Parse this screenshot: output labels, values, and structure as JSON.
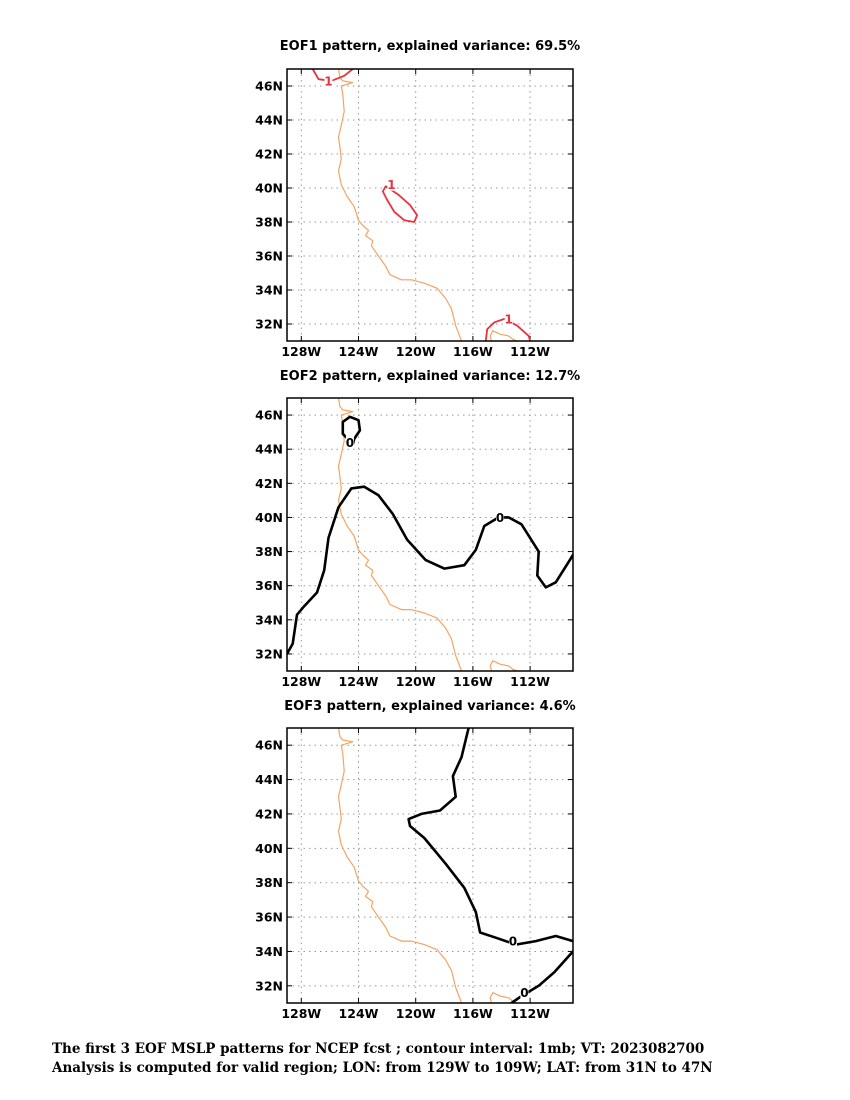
{
  "colors": {
    "coastline": "#f4a460",
    "positive_contour": "#e8333f",
    "zero_contour": "#000000",
    "grid": "#999999"
  },
  "chart_data": [
    {
      "type": "contour",
      "title": "EOF1 pattern, explained variance: 69.5%",
      "explained_variance_pct": 69.5,
      "x_ticks": [
        "128W",
        "124W",
        "120W",
        "116W",
        "112W"
      ],
      "y_ticks": [
        "46N",
        "44N",
        "42N",
        "40N",
        "38N",
        "36N",
        "34N",
        "32N"
      ],
      "xlim": [
        -129,
        -109
      ],
      "ylim": [
        31,
        47
      ],
      "grid": true,
      "contour_labels": [
        {
          "text": "1",
          "color": "positive_contour"
        },
        {
          "text": "1",
          "color": "positive_contour"
        },
        {
          "text": "1",
          "color": "positive_contour"
        }
      ],
      "contours": [
        {
          "level": 1,
          "color": "positive_contour",
          "points": [
            [
              -127.2,
              47.0
            ],
            [
              -126.8,
              46.4
            ],
            [
              -125.9,
              46.3
            ],
            [
              -125.0,
              46.6
            ],
            [
              -124.4,
              47.0
            ]
          ]
        },
        {
          "level": 1,
          "color": "positive_contour",
          "points": [
            [
              -122.1,
              40.1
            ],
            [
              -121.2,
              39.6
            ],
            [
              -120.4,
              39.0
            ],
            [
              -119.9,
              38.4
            ],
            [
              -120.1,
              38.0
            ],
            [
              -120.8,
              38.1
            ],
            [
              -121.5,
              38.6
            ],
            [
              -122.0,
              39.3
            ],
            [
              -122.3,
              39.8
            ],
            [
              -122.1,
              40.1
            ]
          ]
        },
        {
          "level": 1,
          "color": "positive_contour",
          "points": [
            [
              -115.1,
              31.0
            ],
            [
              -115.0,
              31.7
            ],
            [
              -114.5,
              32.1
            ],
            [
              -113.8,
              32.3
            ],
            [
              -112.9,
              31.9
            ],
            [
              -112.1,
              31.3
            ],
            [
              -112.0,
              31.0
            ]
          ]
        }
      ]
    },
    {
      "type": "contour",
      "title": "EOF2 pattern, explained variance: 12.7%",
      "explained_variance_pct": 12.7,
      "x_ticks": [
        "128W",
        "124W",
        "120W",
        "116W",
        "112W"
      ],
      "y_ticks": [
        "46N",
        "44N",
        "42N",
        "40N",
        "38N",
        "36N",
        "34N",
        "32N"
      ],
      "xlim": [
        -129,
        -109
      ],
      "ylim": [
        31,
        47
      ],
      "grid": true,
      "contour_labels": [
        {
          "text": "0",
          "color": "zero_contour"
        },
        {
          "text": "0",
          "color": "zero_contour"
        }
      ],
      "contours": [
        {
          "level": 0,
          "color": "zero_contour",
          "points": [
            [
              -124.4,
              44.3
            ],
            [
              -125.1,
              44.9
            ],
            [
              -125.1,
              45.6
            ],
            [
              -124.6,
              45.9
            ],
            [
              -124.0,
              45.7
            ],
            [
              -123.9,
              45.1
            ],
            [
              -124.3,
              44.6
            ],
            [
              -124.4,
              44.3
            ]
          ]
        },
        {
          "level": 0,
          "color": "zero_contour",
          "points": [
            [
              -129.0,
              32.0
            ],
            [
              -128.6,
              32.6
            ],
            [
              -128.3,
              34.3
            ],
            [
              -127.8,
              34.8
            ],
            [
              -126.9,
              35.6
            ],
            [
              -126.4,
              36.9
            ],
            [
              -126.1,
              38.8
            ],
            [
              -125.4,
              40.6
            ],
            [
              -124.5,
              41.7
            ],
            [
              -123.6,
              41.8
            ],
            [
              -122.6,
              41.3
            ],
            [
              -121.6,
              40.2
            ],
            [
              -120.6,
              38.7
            ],
            [
              -119.3,
              37.5
            ],
            [
              -118.0,
              37.0
            ],
            [
              -116.6,
              37.2
            ],
            [
              -115.8,
              38.1
            ],
            [
              -115.2,
              39.5
            ],
            [
              -114.2,
              40.0
            ],
            [
              -113.5,
              40.0
            ],
            [
              -112.6,
              39.6
            ],
            [
              -111.4,
              38.0
            ],
            [
              -111.5,
              36.6
            ],
            [
              -110.9,
              35.9
            ],
            [
              -110.2,
              36.2
            ],
            [
              -109.0,
              37.8
            ]
          ]
        }
      ]
    },
    {
      "type": "contour",
      "title": "EOF3 pattern, explained variance: 4.6%",
      "explained_variance_pct": 4.6,
      "x_ticks": [
        "128W",
        "124W",
        "120W",
        "116W",
        "112W"
      ],
      "y_ticks": [
        "46N",
        "44N",
        "42N",
        "40N",
        "38N",
        "36N",
        "34N",
        "32N"
      ],
      "xlim": [
        -129,
        -109
      ],
      "ylim": [
        31,
        47
      ],
      "grid": true,
      "contour_labels": [
        {
          "text": "0",
          "color": "zero_contour"
        },
        {
          "text": "0",
          "color": "zero_contour"
        }
      ],
      "contours": [
        {
          "level": 0,
          "color": "zero_contour",
          "points": [
            [
              -116.3,
              47.0
            ],
            [
              -116.8,
              45.3
            ],
            [
              -117.4,
              44.2
            ],
            [
              -117.2,
              43.0
            ],
            [
              -118.3,
              42.2
            ],
            [
              -119.6,
              42.0
            ],
            [
              -120.5,
              41.7
            ],
            [
              -120.4,
              41.3
            ],
            [
              -119.4,
              40.6
            ],
            [
              -117.9,
              39.1
            ],
            [
              -116.6,
              37.7
            ],
            [
              -115.8,
              36.3
            ],
            [
              -115.5,
              35.1
            ],
            [
              -114.4,
              34.8
            ],
            [
              -113.0,
              34.4
            ],
            [
              -111.6,
              34.6
            ],
            [
              -110.2,
              34.9
            ],
            [
              -109.0,
              34.6
            ]
          ]
        },
        {
          "level": 0,
          "color": "zero_contour",
          "points": [
            [
              -113.3,
              31.0
            ],
            [
              -112.6,
              31.4
            ],
            [
              -111.4,
              32.0
            ],
            [
              -110.3,
              32.8
            ],
            [
              -109.0,
              34.0
            ]
          ]
        }
      ]
    }
  ],
  "coastline": [
    [
      -125.4,
      47.0
    ],
    [
      -125.3,
      46.5
    ],
    [
      -125.1,
      46.3
    ],
    [
      -124.4,
      46.2
    ],
    [
      -125.2,
      46.0
    ],
    [
      -125.1,
      45.5
    ],
    [
      -125.0,
      44.5
    ],
    [
      -125.2,
      43.7
    ],
    [
      -125.4,
      43.0
    ],
    [
      -125.3,
      42.4
    ],
    [
      -125.2,
      41.7
    ],
    [
      -125.4,
      41.0
    ],
    [
      -125.2,
      40.2
    ],
    [
      -124.8,
      39.5
    ],
    [
      -124.3,
      38.9
    ],
    [
      -124.0,
      38.1
    ],
    [
      -123.7,
      37.8
    ],
    [
      -123.3,
      37.5
    ],
    [
      -123.5,
      37.2
    ],
    [
      -123.0,
      36.9
    ],
    [
      -123.1,
      36.6
    ],
    [
      -122.6,
      36.0
    ],
    [
      -122.1,
      35.4
    ],
    [
      -121.8,
      34.9
    ],
    [
      -121.0,
      34.6
    ],
    [
      -120.3,
      34.6
    ],
    [
      -119.4,
      34.4
    ],
    [
      -118.5,
      34.1
    ],
    [
      -117.9,
      33.5
    ],
    [
      -117.5,
      32.9
    ],
    [
      -117.2,
      31.9
    ],
    [
      -116.8,
      31.0
    ]
  ],
  "gulf_coastline": [
    [
      -114.7,
      31.0
    ],
    [
      -114.8,
      31.3
    ],
    [
      -114.6,
      31.6
    ],
    [
      -114.1,
      31.4
    ],
    [
      -113.5,
      31.3
    ],
    [
      -113.2,
      31.1
    ],
    [
      -112.9,
      31.0
    ]
  ],
  "footer": {
    "line1": "The first 3 EOF MSLP patterns for NCEP fcst ; contour interval: 1mb; VT: 2023082700",
    "line2": "Analysis is computed for valid region; LON: from 129W to 109W; LAT: from 31N to 47N"
  }
}
